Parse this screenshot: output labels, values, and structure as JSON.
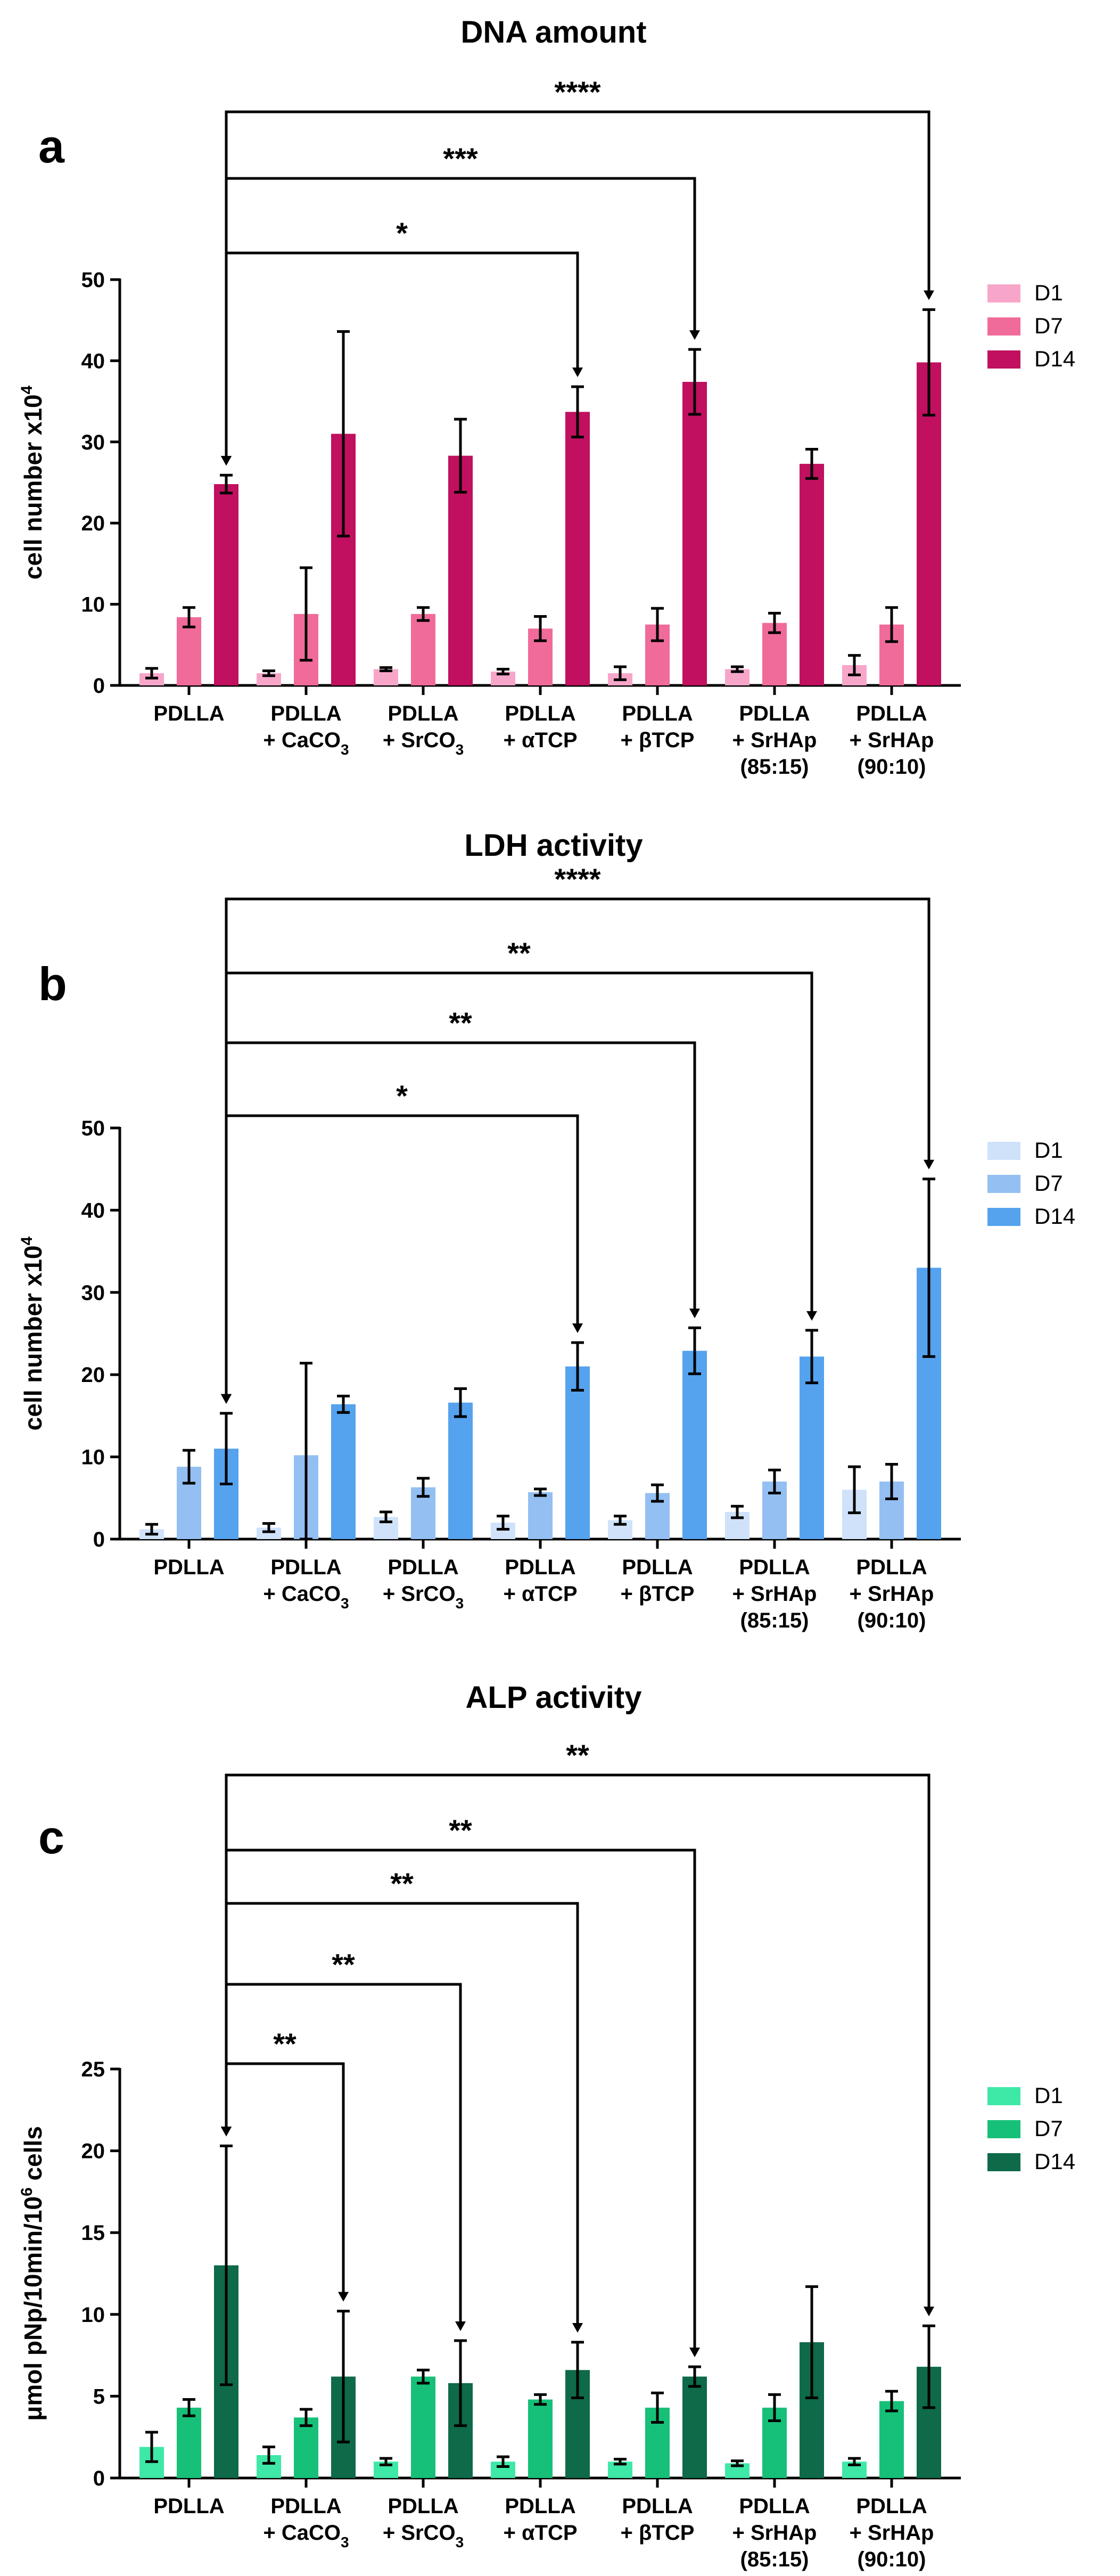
{
  "chart_data": [
    {
      "type": "bar",
      "panel": "a",
      "title": "DNA amount",
      "xlabel": "",
      "ylabel": "cell number x10",
      "ylabel_superscript": "4",
      "ylim": [
        0,
        50
      ],
      "yticks": [
        0,
        10,
        20,
        30,
        40,
        50
      ],
      "categories": [
        {
          "lines": [
            "PDLLA"
          ]
        },
        {
          "lines": [
            "PDLLA",
            "+ CaCO",
            "3"
          ]
        },
        {
          "lines": [
            "PDLLA",
            "+ SrCO",
            "3"
          ]
        },
        {
          "lines": [
            "PDLLA",
            "+ αTCP"
          ]
        },
        {
          "lines": [
            "PDLLA",
            "+ βTCP"
          ]
        },
        {
          "lines": [
            "PDLLA",
            "+ SrHAp",
            "(85:15)"
          ]
        },
        {
          "lines": [
            "PDLLA",
            "+ SrHAp",
            "(90:10)"
          ]
        }
      ],
      "series": [
        {
          "name": "D1",
          "color": "#f7a6c9",
          "values": [
            1.5,
            1.5,
            2.0,
            1.7,
            1.5,
            2.0,
            2.5
          ],
          "errors": [
            0.6,
            0.3,
            0.2,
            0.3,
            0.8,
            0.3,
            1.2
          ]
        },
        {
          "name": "D7",
          "color": "#f06b9a",
          "values": [
            8.4,
            8.8,
            8.8,
            7.0,
            7.5,
            7.7,
            7.5
          ],
          "errors": [
            1.2,
            5.7,
            0.8,
            1.5,
            2.0,
            1.2,
            2.1
          ]
        },
        {
          "name": "D14",
          "color": "#c0105f",
          "values": [
            24.8,
            31.0,
            28.3,
            33.7,
            37.4,
            27.3,
            39.8
          ],
          "errors": [
            1.1,
            12.6,
            4.5,
            3.1,
            4.0,
            1.8,
            6.5
          ]
        }
      ],
      "significance": [
        {
          "label": "*",
          "from_category": 0,
          "to_category": 3
        },
        {
          "label": "***",
          "from_category": 0,
          "to_category": 4
        },
        {
          "label": "****",
          "from_category": 0,
          "to_category": 6
        }
      ],
      "legend_position": "right"
    },
    {
      "type": "bar",
      "panel": "b",
      "title": "LDH activity",
      "xlabel": "",
      "ylabel": "cell number x10",
      "ylabel_superscript": "4",
      "ylim": [
        0,
        50
      ],
      "yticks": [
        0,
        10,
        20,
        30,
        40,
        50
      ],
      "categories": [
        {
          "lines": [
            "PDLLA"
          ]
        },
        {
          "lines": [
            "PDLLA",
            "+ CaCO",
            "3"
          ]
        },
        {
          "lines": [
            "PDLLA",
            "+ SrCO",
            "3"
          ]
        },
        {
          "lines": [
            "PDLLA",
            "+ αTCP"
          ]
        },
        {
          "lines": [
            "PDLLA",
            "+ βTCP"
          ]
        },
        {
          "lines": [
            "PDLLA",
            "+ SrHAp",
            "(85:15)"
          ]
        },
        {
          "lines": [
            "PDLLA",
            "+ SrHAp",
            "(90:10)"
          ]
        }
      ],
      "series": [
        {
          "name": "D1",
          "color": "#cfe2fa",
          "values": [
            1.2,
            1.4,
            2.7,
            2.0,
            2.3,
            3.3,
            6.0
          ],
          "errors": [
            0.6,
            0.5,
            0.6,
            0.8,
            0.5,
            0.7,
            2.8
          ]
        },
        {
          "name": "D7",
          "color": "#94bff2",
          "values": [
            8.8,
            10.2,
            6.3,
            5.7,
            5.6,
            7.0,
            7.0
          ],
          "errors": [
            2.0,
            11.2,
            1.1,
            0.4,
            1.0,
            1.4,
            2.1
          ]
        },
        {
          "name": "D14",
          "color": "#55a2ee",
          "values": [
            11.0,
            16.4,
            16.6,
            21.0,
            22.9,
            22.2,
            33.0
          ],
          "errors": [
            4.3,
            1.0,
            1.7,
            2.9,
            2.8,
            3.2,
            10.8
          ]
        }
      ],
      "significance": [
        {
          "label": "*",
          "from_category": 0,
          "to_category": 3
        },
        {
          "label": "**",
          "from_category": 0,
          "to_category": 4
        },
        {
          "label": "**",
          "from_category": 0,
          "to_category": 5
        },
        {
          "label": "****",
          "from_category": 0,
          "to_category": 6
        }
      ],
      "legend_position": "right"
    },
    {
      "type": "bar",
      "panel": "c",
      "title": "ALP activity",
      "xlabel": "",
      "ylabel": "μmol pNp/10min/10",
      "ylabel_superscript": "6",
      "ylabel_suffix": " cells",
      "ylim": [
        0,
        25
      ],
      "yticks": [
        0,
        5,
        10,
        15,
        20,
        25
      ],
      "categories": [
        {
          "lines": [
            "PDLLA"
          ]
        },
        {
          "lines": [
            "PDLLA",
            "+ CaCO",
            "3"
          ]
        },
        {
          "lines": [
            "PDLLA",
            "+ SrCO",
            "3"
          ]
        },
        {
          "lines": [
            "PDLLA",
            "+ αTCP"
          ]
        },
        {
          "lines": [
            "PDLLA",
            "+ βTCP"
          ]
        },
        {
          "lines": [
            "PDLLA",
            "+ SrHAp",
            "(85:15)"
          ]
        },
        {
          "lines": [
            "PDLLA",
            "+ SrHAp",
            "(90:10)"
          ]
        }
      ],
      "series": [
        {
          "name": "D1",
          "color": "#3ee8a6",
          "values": [
            1.9,
            1.4,
            1.0,
            1.0,
            1.0,
            0.9,
            1.0
          ],
          "errors": [
            0.9,
            0.5,
            0.2,
            0.3,
            0.15,
            0.15,
            0.2
          ]
        },
        {
          "name": "D7",
          "color": "#16c078",
          "values": [
            4.3,
            3.7,
            6.2,
            4.8,
            4.3,
            4.3,
            4.7
          ],
          "errors": [
            0.5,
            0.5,
            0.4,
            0.3,
            0.9,
            0.8,
            0.6
          ]
        },
        {
          "name": "D14",
          "color": "#0e6a48",
          "values": [
            13.0,
            6.2,
            5.8,
            6.6,
            6.2,
            8.3,
            6.8
          ],
          "errors": [
            7.3,
            4.0,
            2.6,
            1.7,
            0.6,
            3.4,
            2.5
          ]
        }
      ],
      "significance": [
        {
          "label": "**",
          "from_category": 0,
          "to_category": 1
        },
        {
          "label": "**",
          "from_category": 0,
          "to_category": 2
        },
        {
          "label": "**",
          "from_category": 0,
          "to_category": 3
        },
        {
          "label": "**",
          "from_category": 0,
          "to_category": 4
        },
        {
          "label": "**",
          "from_category": 0,
          "to_category": 6
        }
      ],
      "legend_position": "right"
    }
  ]
}
